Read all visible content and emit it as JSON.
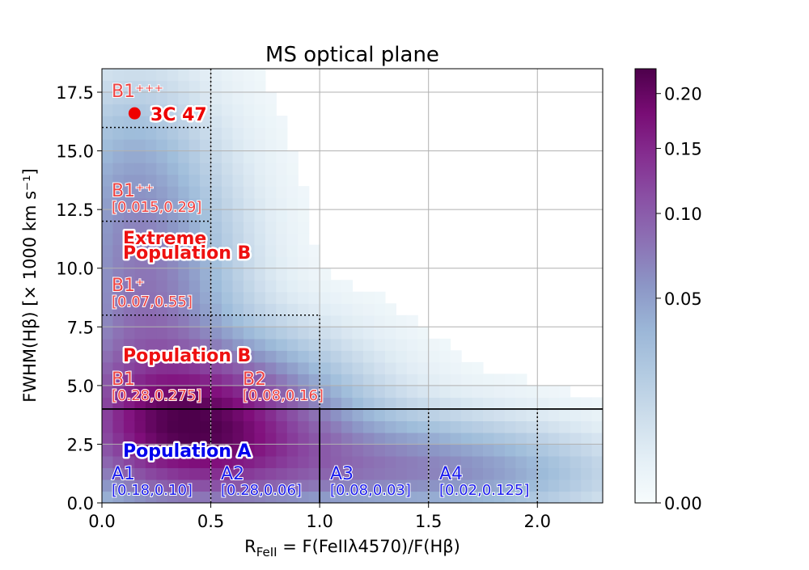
{
  "chart_data": {
    "type": "heatmap",
    "title": "MS optical plane",
    "xlabel": "R_FeII = F(FeIIλ4570)/F(Hβ)",
    "xlabel_parts": {
      "r": "R",
      "r_sub": "FeII",
      "rest": " = F(FeIIλ4570)/F(Hβ)"
    },
    "ylabel": "FWHM(Hβ) [× 1000 km s⁻¹]",
    "xlim": [
      0,
      2.3
    ],
    "ylim": [
      0,
      18.5
    ],
    "x_ticks": [
      "0.0",
      "0.5",
      "1.0",
      "1.5",
      "2.0"
    ],
    "y_ticks": [
      "0.0",
      "2.5",
      "5.0",
      "7.5",
      "10.0",
      "12.5",
      "15.0",
      "17.5"
    ],
    "grid": true,
    "colormap": "BuPu",
    "colors": {
      "pop_a": "#0000ee",
      "pop_b": "#ee1111",
      "bin_b": "#ee4444",
      "bin_a": "#1a1aee",
      "shade_b": "#f6dde3",
      "marker": "#ee0000"
    },
    "colorbar": {
      "ticks": [
        "0.00",
        "0.05",
        "0.10",
        "0.15",
        "0.20"
      ],
      "max": 0.225,
      "scale": "power"
    },
    "density_peak": {
      "x": 0.45,
      "y": 3.3,
      "max": 0.225
    },
    "annotations": {
      "population_a": "Population A",
      "population_b": "Population B",
      "extreme_line1": "Extreme",
      "extreme_line2": "Population B",
      "source_label": "3C 47",
      "source_point": {
        "x": 0.15,
        "y": 16.6
      },
      "bins": [
        {
          "name": "A1",
          "range": "[0.18,0.10]",
          "pop": "A"
        },
        {
          "name": "A2",
          "range": "[0.28,0.06]",
          "pop": "A"
        },
        {
          "name": "A3",
          "range": "[0.08,0.03]",
          "pop": "A"
        },
        {
          "name": "A4",
          "range": "[0.02,0.125]",
          "pop": "A"
        },
        {
          "name": "B1",
          "range": "[0.28,0.275]",
          "pop": "B"
        },
        {
          "name": "B2",
          "range": "[0.08,0.16]",
          "pop": "B"
        },
        {
          "name": "B1⁺",
          "range": "[0.07,0.55]",
          "pop": "B"
        },
        {
          "name": "B1⁺⁺",
          "range": "[0.015,0.29]",
          "pop": "B"
        },
        {
          "name": "B1⁺⁺⁺",
          "range": "",
          "pop": "B"
        }
      ]
    }
  }
}
